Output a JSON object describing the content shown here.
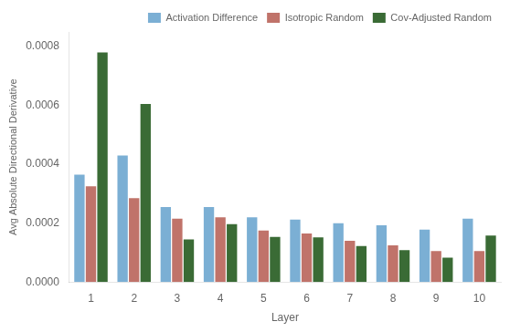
{
  "chart_data": {
    "type": "bar",
    "categories": [
      "1",
      "2",
      "3",
      "4",
      "5",
      "6",
      "7",
      "8",
      "9",
      "10"
    ],
    "series": [
      {
        "name": "Activation Difference",
        "color": "#7BAFD4",
        "values": [
          0.000365,
          0.00043,
          0.000255,
          0.000255,
          0.00022,
          0.000212,
          0.0002,
          0.000193,
          0.000178,
          0.000215
        ]
      },
      {
        "name": "Isotropic Random",
        "color": "#C0736A",
        "values": [
          0.000325,
          0.000285,
          0.000215,
          0.00022,
          0.000175,
          0.000165,
          0.00014,
          0.000125,
          0.000105,
          0.000105
        ]
      },
      {
        "name": "Cov-Adjusted Random",
        "color": "#3A6B35",
        "values": [
          0.00078,
          0.000605,
          0.000145,
          0.000197,
          0.000153,
          0.000152,
          0.000122,
          0.000108,
          8.3e-05,
          0.000158
        ]
      }
    ],
    "xlabel": "Layer",
    "ylabel": "Avg Absolute Directional Derivative",
    "ylim": [
      0,
      0.00085
    ],
    "yticks": [
      {
        "value": 0,
        "label": "0.0000"
      },
      0.0002,
      0.0004,
      0.0006,
      0.0008
    ],
    "grid": false,
    "legend": "upper right"
  }
}
